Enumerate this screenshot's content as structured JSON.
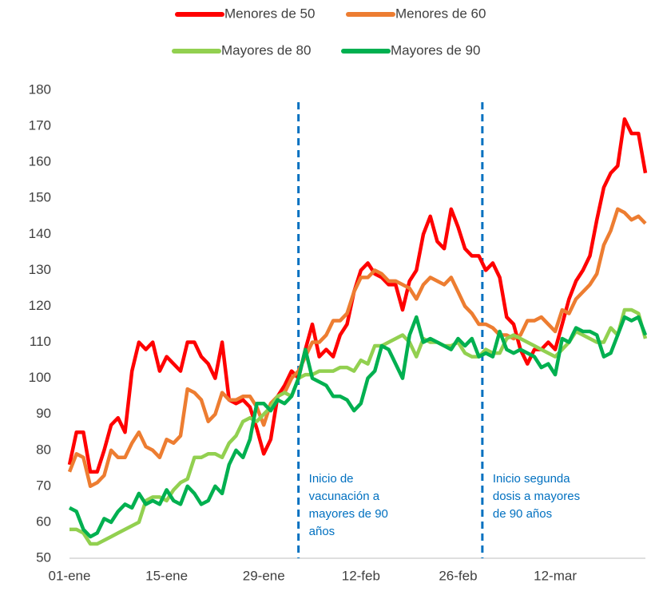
{
  "chart_data": {
    "type": "line",
    "categories": [
      "01-ene",
      null,
      null,
      null,
      null,
      null,
      null,
      null,
      null,
      null,
      null,
      null,
      null,
      null,
      "15-ene",
      null,
      null,
      null,
      null,
      null,
      null,
      null,
      null,
      null,
      null,
      null,
      null,
      null,
      "29-ene",
      null,
      null,
      null,
      null,
      null,
      null,
      null,
      null,
      null,
      null,
      null,
      null,
      null,
      "12-feb",
      null,
      null,
      null,
      null,
      null,
      null,
      null,
      null,
      null,
      null,
      null,
      null,
      null,
      "26-feb",
      null,
      null,
      null,
      null,
      null,
      null,
      null,
      null,
      null,
      null,
      null,
      null,
      null,
      "12-mar",
      null,
      null,
      null,
      null,
      null,
      null,
      null,
      null,
      null,
      null,
      null,
      null,
      null
    ],
    "series": [
      {
        "name": "Menores de 50",
        "color": "#ff0000",
        "values": [
          76,
          85,
          85,
          74,
          74,
          80,
          87,
          89,
          85,
          102,
          110,
          108,
          110,
          102,
          106,
          104,
          102,
          110,
          110,
          106,
          104,
          100,
          110,
          94,
          93,
          94,
          92,
          86,
          79,
          83,
          95,
          98,
          102,
          100,
          108,
          115,
          106,
          108,
          106,
          112,
          115,
          124,
          130,
          132,
          129,
          128,
          126,
          126,
          119,
          127,
          130,
          140,
          145,
          138,
          136,
          147,
          142,
          136,
          134,
          134,
          130,
          132,
          128,
          117,
          115,
          108,
          104,
          108,
          108,
          110,
          108,
          115,
          122,
          127,
          130,
          134,
          144,
          153,
          157,
          159,
          172,
          168,
          168,
          157
        ]
      },
      {
        "name": "Menores de 60",
        "color": "#ed7d31",
        "values": [
          74,
          79,
          78,
          70,
          71,
          73,
          80,
          78,
          78,
          82,
          85,
          81,
          80,
          78,
          83,
          82,
          84,
          97,
          96,
          94,
          88,
          90,
          96,
          94,
          94,
          95,
          95,
          92,
          87,
          93,
          95,
          96,
          100,
          102,
          106,
          110,
          110,
          112,
          116,
          116,
          118,
          124,
          128,
          128,
          130,
          129,
          127,
          127,
          126,
          125,
          122,
          126,
          128,
          127,
          126,
          128,
          124,
          120,
          118,
          115,
          115,
          114,
          112,
          112,
          111,
          112,
          116,
          116,
          117,
          115,
          113,
          119,
          118,
          122,
          124,
          126,
          129,
          137,
          141,
          147,
          146,
          144,
          145,
          143
        ]
      },
      {
        "name": "Mayores de 80",
        "color": "#92d050",
        "values": [
          58,
          58,
          57,
          54,
          54,
          55,
          56,
          57,
          58,
          59,
          60,
          66,
          67,
          67,
          66,
          69,
          71,
          72,
          78,
          78,
          79,
          79,
          78,
          82,
          84,
          88,
          89,
          88,
          90,
          92,
          95,
          96,
          95,
          100,
          101,
          101,
          102,
          102,
          102,
          103,
          103,
          102,
          105,
          104,
          109,
          109,
          110,
          111,
          112,
          110,
          106,
          111,
          110,
          110,
          109,
          109,
          110,
          107,
          106,
          106,
          108,
          107,
          107,
          111,
          112,
          111,
          110,
          109,
          108,
          107,
          106,
          108,
          110,
          113,
          112,
          111,
          110,
          110,
          114,
          112,
          119,
          119,
          118,
          111
        ]
      },
      {
        "name": "Mayores de 90",
        "color": "#00b050",
        "values": [
          64,
          63,
          58,
          56,
          57,
          61,
          60,
          63,
          65,
          64,
          68,
          65,
          66,
          65,
          69,
          66,
          65,
          70,
          68,
          65,
          66,
          70,
          68,
          76,
          80,
          78,
          83,
          93,
          93,
          91,
          94,
          93,
          95,
          100,
          108,
          100,
          99,
          98,
          95,
          95,
          94,
          91,
          93,
          100,
          102,
          109,
          108,
          104,
          100,
          112,
          117,
          110,
          111,
          110,
          109,
          108,
          111,
          109,
          111,
          106,
          107,
          106,
          113,
          108,
          107,
          108,
          107,
          106,
          103,
          104,
          101,
          111,
          110,
          114,
          113,
          113,
          112,
          106,
          107,
          112,
          117,
          116,
          117,
          112
        ]
      }
    ],
    "ylim": [
      50,
      180
    ],
    "yticks": [
      50,
      60,
      70,
      80,
      90,
      100,
      110,
      120,
      130,
      140,
      150,
      160,
      170,
      180
    ],
    "annotations": [
      {
        "x": 33,
        "lines": [
          "Inicio de",
          "vacunación a",
          "mayores de 90",
          "años"
        ]
      },
      {
        "x": 59.5,
        "lines": [
          "Inicio segunda",
          "dosis a mayores",
          "de 90 años"
        ]
      }
    ],
    "legend": "top"
  }
}
